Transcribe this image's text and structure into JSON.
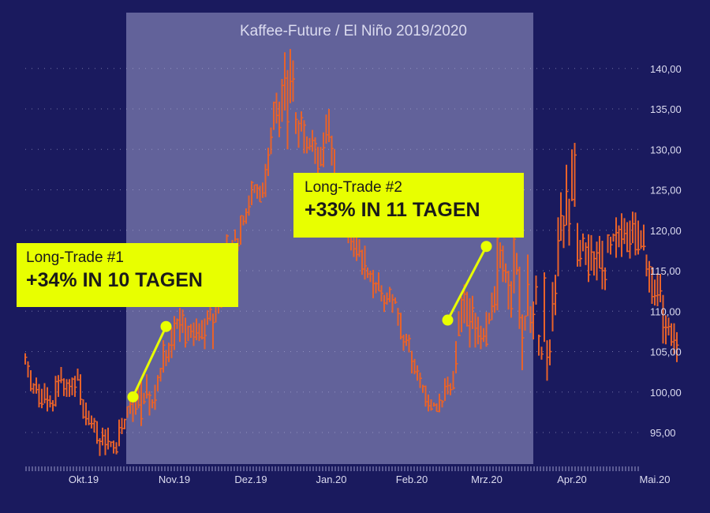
{
  "chart_data": {
    "type": "ohlc",
    "title": "Kaffee-Future / El Niño 2019/2020",
    "xlabel": "",
    "ylabel": "",
    "ylim": [
      90.5,
      146.5
    ],
    "y_ticks": [
      "95,00",
      "100,00",
      "105,00",
      "110,00",
      "115,00",
      "120,00",
      "125,00",
      "130,00",
      "135,00",
      "140,00"
    ],
    "y_tick_values": [
      95,
      100,
      105,
      110,
      115,
      120,
      125,
      130,
      135,
      140
    ],
    "x_tick_labels": [
      "Okt.19",
      "Nov.19",
      "Dez.19",
      "Jan.20",
      "Feb.20",
      "Mrz.20",
      "Apr.20",
      "Mai.20"
    ],
    "grid": true,
    "shaded_period": {
      "from_bar": 37,
      "to_bar": 184
    },
    "colors": {
      "background": "#1a1a5e",
      "shade": "#62629a",
      "bars": "#e8622a",
      "highlight": "#e8ff00",
      "text": "#dcdcf0"
    },
    "bars": [
      [
        104.8,
        103.4,
        104.3
      ],
      [
        103.8,
        101.8,
        103.2
      ],
      [
        102.7,
        100.1,
        100.4
      ],
      [
        101.1,
        99.8,
        100.9
      ],
      [
        101.8,
        99.8,
        100.3
      ],
      [
        101.0,
        98.1,
        98.6
      ],
      [
        100.4,
        98.0,
        98.5
      ],
      [
        101.1,
        98.6,
        99.1
      ],
      [
        100.6,
        97.6,
        99.0
      ],
      [
        99.6,
        98.1,
        98.6
      ],
      [
        99.0,
        97.6,
        98.4
      ],
      [
        102.0,
        98.2,
        101.3
      ],
      [
        102.1,
        99.4,
        101.4
      ],
      [
        103.1,
        101.1,
        101.5
      ],
      [
        101.7,
        99.5,
        100.4
      ],
      [
        101.6,
        99.4,
        101.1
      ],
      [
        101.6,
        99.4,
        100.7
      ],
      [
        101.8,
        99.6,
        101.6
      ],
      [
        102.0,
        99.4,
        100.6
      ],
      [
        102.9,
        101.4,
        101.5
      ],
      [
        102.2,
        98.4,
        99.1
      ],
      [
        99.1,
        96.7,
        96.9
      ],
      [
        98.7,
        95.9,
        96.7
      ],
      [
        97.7,
        95.9,
        96.1
      ],
      [
        97.1,
        95.5,
        96.1
      ],
      [
        96.8,
        95.0,
        96.4
      ],
      [
        96.4,
        93.6,
        94.0
      ],
      [
        94.3,
        92.1,
        93.9
      ],
      [
        95.6,
        93.4,
        94.6
      ],
      [
        95.4,
        92.2,
        93.5
      ],
      [
        95.6,
        92.9,
        93.9
      ],
      [
        93.9,
        93.2,
        93.8
      ],
      [
        94.0,
        92.4,
        93.1
      ],
      [
        93.8,
        92.3,
        92.6
      ],
      [
        96.6,
        93.3,
        95.6
      ],
      [
        96.8,
        94.8,
        95.5
      ],
      [
        96.7,
        95.4,
        96.6
      ],
      [
        98.2,
        96.8,
        98.2
      ],
      [
        99.3,
        97.3,
        98.5
      ],
      [
        100.0,
        96.3,
        99.4
      ],
      [
        99.2,
        97.2,
        97.9
      ],
      [
        100.7,
        98.0,
        98.4
      ],
      [
        101.3,
        95.8,
        96.7
      ],
      [
        99.9,
        98.5,
        98.8
      ],
      [
        102.2,
        99.2,
        99.7
      ],
      [
        100.1,
        97.1,
        99.6
      ],
      [
        99.1,
        98.0,
        98.7
      ],
      [
        100.9,
        97.8,
        99.0
      ],
      [
        102.1,
        100.1,
        101.8
      ],
      [
        103.0,
        101.3,
        102.9
      ],
      [
        106.4,
        102.4,
        105.8
      ],
      [
        105.2,
        103.2,
        104.3
      ],
      [
        106.1,
        103.7,
        105.8
      ],
      [
        108.0,
        104.2,
        105.8
      ],
      [
        109.4,
        105.2,
        108.5
      ],
      [
        109.1,
        107.8,
        108.9
      ],
      [
        110.4,
        106.2,
        108.3
      ],
      [
        110.2,
        107.3,
        109.5
      ],
      [
        109.2,
        105.5,
        106.1
      ],
      [
        108.2,
        106.3,
        108.1
      ],
      [
        108.4,
        106.7,
        107.5
      ],
      [
        108.6,
        105.7,
        106.8
      ],
      [
        109.1,
        106.4,
        107.3
      ],
      [
        108.5,
        106.3,
        106.8
      ],
      [
        108.9,
        106.5,
        106.7
      ],
      [
        109.1,
        105.3,
        107.0
      ],
      [
        110.1,
        108.3,
        109.1
      ],
      [
        111.7,
        108.8,
        110.2
      ],
      [
        109.7,
        105.3,
        108.6
      ],
      [
        111.3,
        108.6,
        110.7
      ],
      [
        111.4,
        109.7,
        110.9
      ],
      [
        114.7,
        110.4,
        114.1
      ],
      [
        114.4,
        113.0,
        113.3
      ],
      [
        119.5,
        113.4,
        119.3
      ],
      [
        117.8,
        116.5,
        117.6
      ],
      [
        118.8,
        116.9,
        118.2
      ],
      [
        120.1,
        118.6,
        118.9
      ],
      [
        119.0,
        117.4,
        118.1
      ],
      [
        121.8,
        118.2,
        121.8
      ],
      [
        121.8,
        120.6,
        121.1
      ],
      [
        122.7,
        120.8,
        122.2
      ],
      [
        124.3,
        121.8,
        122.9
      ],
      [
        126.1,
        123.1,
        125.9
      ],
      [
        125.6,
        124.6,
        125.6
      ],
      [
        125.7,
        123.9,
        125.2
      ],
      [
        125.5,
        123.5,
        123.5
      ],
      [
        125.9,
        124.0,
        124.6
      ],
      [
        128.2,
        124.1,
        127.5
      ],
      [
        130.2,
        126.7,
        129.3
      ],
      [
        132.7,
        129.4,
        131.5
      ],
      [
        135.9,
        132.4,
        135.8
      ],
      [
        137.0,
        133.2,
        134.2
      ],
      [
        135.9,
        131.5,
        132.7
      ],
      [
        138.7,
        133.4,
        137.9
      ],
      [
        142.0,
        134.8,
        138.8
      ],
      [
        139.8,
        130.0,
        133.4
      ],
      [
        142.4,
        135.7,
        138.4
      ],
      [
        141.0,
        135.9,
        138.7
      ],
      [
        134.6,
        131.9,
        133.7
      ],
      [
        133.6,
        130.2,
        133.2
      ],
      [
        134.7,
        132.2,
        133.9
      ],
      [
        133.6,
        129.5,
        133.0
      ],
      [
        131.6,
        129.5,
        130.2
      ],
      [
        131.4,
        129.9,
        130.4
      ],
      [
        132.4,
        129.7,
        131.1
      ],
      [
        131.5,
        128.2,
        130.7
      ],
      [
        130.3,
        126.7,
        127.6
      ],
      [
        130.3,
        127.9,
        128.1
      ],
      [
        132.1,
        127.8,
        130.2
      ],
      [
        134.3,
        130.7,
        131.8
      ],
      [
        135.0,
        130.9,
        131.5
      ],
      [
        131.7,
        128.0,
        130.1
      ],
      [
        130.0,
        126.5,
        126.8
      ],
      [
        126.0,
        125.2,
        125.6
      ],
      [
        125.3,
        120.0,
        120.6
      ],
      [
        122.4,
        119.8,
        121.3
      ],
      [
        122.2,
        120.8,
        121.7
      ],
      [
        121.5,
        118.4,
        119.4
      ],
      [
        120.1,
        117.5,
        118.6
      ],
      [
        119.8,
        116.7,
        117.7
      ],
      [
        119.1,
        116.2,
        117.0
      ],
      [
        118.9,
        116.7,
        117.4
      ],
      [
        117.6,
        114.5,
        115.2
      ],
      [
        118.1,
        113.9,
        115.6
      ],
      [
        115.4,
        114.1,
        114.6
      ],
      [
        115.0,
        113.6,
        114.6
      ],
      [
        115.1,
        111.6,
        113.4
      ],
      [
        113.6,
        112.2,
        113.4
      ],
      [
        114.8,
        112.5,
        112.5
      ],
      [
        113.2,
        111.2,
        112.2
      ],
      [
        112.0,
        109.9,
        111.0
      ],
      [
        112.3,
        110.8,
        111.5
      ],
      [
        113.0,
        111.1,
        112.7
      ],
      [
        112.1,
        109.8,
        111.4
      ],
      [
        111.7,
        110.9,
        111.1
      ],
      [
        110.4,
        108.2,
        109.7
      ],
      [
        109.8,
        106.5,
        106.8
      ],
      [
        107.1,
        105.1,
        106.2
      ],
      [
        107.2,
        105.7,
        106.4
      ],
      [
        107.1,
        104.9,
        106.6
      ],
      [
        105.1,
        102.3,
        103.8
      ],
      [
        104.1,
        102.2,
        102.5
      ],
      [
        103.3,
        101.4,
        102.6
      ],
      [
        102.4,
        100.5,
        101.7
      ],
      [
        100.9,
        99.9,
        100.7
      ],
      [
        100.8,
        98.2,
        98.8
      ],
      [
        99.7,
        97.6,
        98.3
      ],
      [
        99.1,
        97.7,
        97.9
      ],
      [
        98.7,
        98.2,
        98.4
      ],
      [
        98.6,
        97.6,
        97.6
      ],
      [
        99.8,
        97.5,
        99.0
      ],
      [
        99.0,
        98.1,
        98.8
      ],
      [
        101.7,
        98.9,
        100.7
      ],
      [
        101.9,
        99.7,
        100.8
      ],
      [
        101.1,
        99.6,
        100.3
      ],
      [
        102.6,
        100.3,
        100.5
      ],
      [
        106.3,
        102.3,
        103.5
      ],
      [
        110.0,
        106.9,
        107.0
      ],
      [
        111.8,
        107.4,
        111.4
      ],
      [
        113.3,
        108.5,
        112.1
      ],
      [
        112.4,
        108.1,
        108.2
      ],
      [
        111.6,
        105.5,
        108.7
      ],
      [
        111.9,
        107.8,
        110.4
      ],
      [
        109.8,
        105.5,
        107.9
      ],
      [
        109.3,
        105.9,
        106.9
      ],
      [
        108.2,
        105.3,
        106.6
      ],
      [
        107.9,
        106.2,
        106.9
      ],
      [
        109.9,
        105.6,
        105.9
      ],
      [
        109.8,
        108.4,
        108.9
      ],
      [
        112.3,
        108.9,
        110.6
      ],
      [
        113.1,
        109.8,
        110.8
      ],
      [
        119.3,
        110.1,
        119.0
      ],
      [
        118.5,
        115.3,
        117.5
      ],
      [
        118.1,
        113.6,
        115.0
      ],
      [
        115.9,
        113.5,
        114.8
      ],
      [
        115.0,
        110.2,
        113.2
      ],
      [
        113.7,
        109.2,
        110.3
      ],
      [
        119.3,
        112.2,
        118.9
      ],
      [
        117.2,
        114.5,
        115.1
      ],
      [
        115.5,
        107.8,
        109.2
      ],
      [
        109.6,
        102.7,
        106.7
      ],
      [
        109.4,
        107.6,
        109.4
      ],
      [
        117.0,
        109.4,
        113.3
      ],
      [
        110.6,
        107.3,
        108.6
      ],
      [
        111.2,
        106.5,
        109.6
      ],
      [
        114.4,
        110.8,
        113.0
      ],
      [
        107.1,
        104.5,
        106.9
      ],
      [
        105.6,
        104.0,
        104.7
      ],
      [
        114.8,
        106.2,
        114.1
      ],
      [
        106.4,
        101.4,
        104.3
      ],
      [
        106.5,
        103.3,
        105.0
      ],
      [
        113.6,
        107.5,
        110.9
      ],
      [
        114.5,
        109.5,
        112.2
      ],
      [
        121.6,
        114.3,
        118.7
      ],
      [
        124.7,
        118.7,
        121.8
      ],
      [
        121.8,
        117.8,
        120.6
      ],
      [
        128.1,
        120.6,
        124.8
      ],
      [
        123.9,
        118.1,
        120.8
      ],
      [
        130.0,
        123.6,
        123.8
      ],
      [
        130.8,
        122.9,
        129.3
      ],
      [
        120.9,
        115.5,
        116.3
      ],
      [
        118.8,
        115.5,
        116.5
      ],
      [
        119.6,
        117.4,
        119.0
      ],
      [
        118.5,
        115.7,
        117.9
      ],
      [
        119.5,
        113.6,
        114.5
      ],
      [
        119.4,
        115.0,
        117.3
      ],
      [
        117.4,
        114.4,
        116.5
      ],
      [
        118.6,
        113.8,
        117.2
      ],
      [
        119.3,
        115.3,
        115.3
      ],
      [
        118.7,
        112.7,
        115.0
      ],
      [
        115.4,
        112.6,
        113.9
      ],
      [
        119.5,
        117.2,
        119.4
      ],
      [
        119.2,
        117.0,
        118.2
      ],
      [
        119.6,
        118.6,
        119.4
      ],
      [
        121.6,
        116.6,
        119.7
      ],
      [
        120.6,
        117.9,
        120.1
      ],
      [
        122.1,
        116.7,
        118.9
      ],
      [
        121.5,
        118.3,
        119.6
      ],
      [
        121.0,
        117.3,
        117.4
      ],
      [
        121.2,
        116.5,
        118.3
      ],
      [
        122.3,
        118.4,
        120.8
      ],
      [
        122.2,
        116.9,
        117.6
      ],
      [
        121.2,
        117.0,
        117.6
      ],
      [
        120.0,
        117.7,
        118.0
      ],
      [
        120.7,
        117.5,
        118.0
      ],
      [
        117.0,
        114.3,
        115.2
      ],
      [
        116.2,
        112.3,
        115.5
      ],
      [
        115.5,
        110.9,
        111.8
      ],
      [
        113.9,
        110.7,
        111.9
      ],
      [
        114.7,
        110.6,
        112.0
      ],
      [
        114.6,
        111.1,
        112.5
      ],
      [
        112.0,
        106.0,
        108.0
      ],
      [
        109.5,
        105.9,
        108.0
      ],
      [
        109.2,
        107.0,
        108.1
      ],
      [
        108.5,
        105.7,
        106.2
      ],
      [
        108.5,
        104.7,
        106.4
      ],
      [
        107.4,
        103.7,
        105.8
      ]
    ]
  },
  "annotations": [
    {
      "label": "Long-Trade #1",
      "value": "+34% IN 10 TAGEN",
      "from_bar": 39,
      "from_y": 99.4,
      "to_bar": 51,
      "to_y": 108.1
    },
    {
      "label": "Long-Trade #2",
      "value": "+33% IN 11 TAGEN",
      "from_bar": 153,
      "from_y": 108.9,
      "to_bar": 167,
      "to_y": 118.0
    }
  ]
}
